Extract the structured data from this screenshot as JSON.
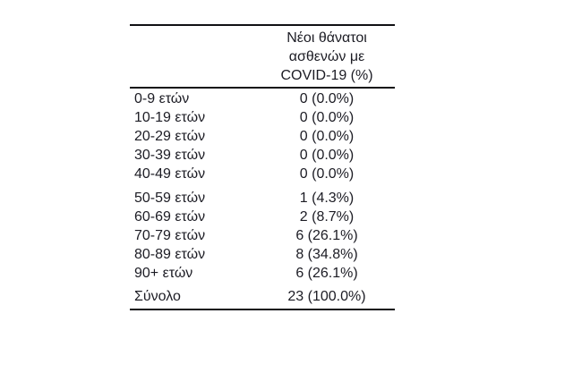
{
  "table": {
    "header": {
      "lines": [
        "Νέοι θάνατοι",
        "ασθενών με",
        "COVID-19 (%)"
      ]
    },
    "groups": [
      {
        "rows": [
          {
            "label": "0-9 ετών",
            "value": "0 (0.0%)"
          },
          {
            "label": "10-19 ετών",
            "value": "0 (0.0%)"
          },
          {
            "label": "20-29 ετών",
            "value": "0 (0.0%)"
          },
          {
            "label": "30-39 ετών",
            "value": "0 (0.0%)"
          },
          {
            "label": "40-49 ετών",
            "value": "0 (0.0%)"
          }
        ]
      },
      {
        "rows": [
          {
            "label": "50-59 ετών",
            "value": "1 (4.3%)"
          },
          {
            "label": "60-69 ετών",
            "value": "2 (8.7%)"
          },
          {
            "label": "70-79 ετών",
            "value": "6 (26.1%)"
          },
          {
            "label": "80-89 ετών",
            "value": "8 (34.8%)"
          },
          {
            "label": "90+ ετών",
            "value": "6 (26.1%)"
          }
        ]
      }
    ],
    "total": {
      "label": "Σύνολο",
      "value": "23 (100.0%)"
    }
  },
  "chart_data": {
    "type": "table",
    "title": "Νέοι θάνατοι ασθενών με COVID-19 (%)",
    "categories": [
      "0-9 ετών",
      "10-19 ετών",
      "20-29 ετών",
      "30-39 ετών",
      "40-49 ετών",
      "50-59 ετών",
      "60-69 ετών",
      "70-79 ετών",
      "80-89 ετών",
      "90+ ετών",
      "Σύνολο"
    ],
    "deaths": [
      0,
      0,
      0,
      0,
      0,
      1,
      2,
      6,
      8,
      6,
      23
    ],
    "percent": [
      0.0,
      0.0,
      0.0,
      0.0,
      0.0,
      4.3,
      8.7,
      26.1,
      34.8,
      26.1,
      100.0
    ]
  },
  "colors": {
    "text": "#1c1c24",
    "rule": "#101014",
    "background": "#ffffff"
  }
}
